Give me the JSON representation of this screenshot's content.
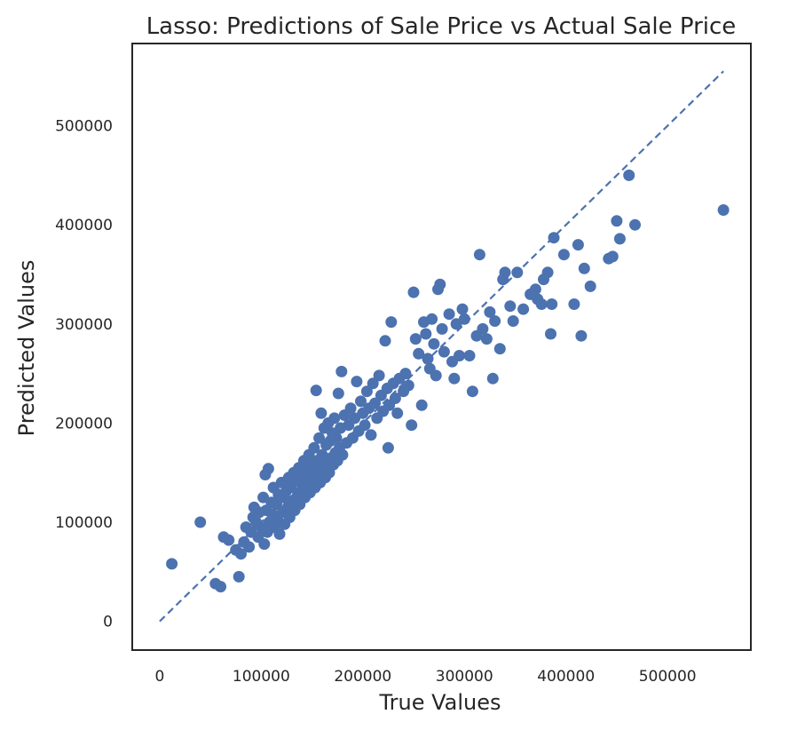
{
  "chart_data": {
    "type": "scatter",
    "title": "Lasso: Predictions of Sale Price vs Actual Sale Price",
    "xlabel": "True Values",
    "ylabel": "Predicted Values",
    "xlim": [
      -27000,
      582000
    ],
    "ylim": [
      -29000,
      583000
    ],
    "xticks": [
      0,
      100000,
      200000,
      300000,
      400000,
      500000
    ],
    "yticks": [
      0,
      100000,
      200000,
      300000,
      400000,
      500000
    ],
    "xtick_labels": [
      "0",
      "100000",
      "200000",
      "300000",
      "400000",
      "500000"
    ],
    "ytick_labels": [
      "0",
      "100000",
      "200000",
      "300000",
      "400000",
      "500000"
    ],
    "grid": false,
    "marker_color": "#4c72b0",
    "reference_line": {
      "style": "dashed",
      "from": [
        0,
        0
      ],
      "to": [
        555000,
        555000
      ]
    },
    "series": [
      {
        "points": [
          [
            12000,
            58000
          ],
          [
            40000,
            100000
          ],
          [
            55000,
            38000
          ],
          [
            60000,
            35000
          ],
          [
            63000,
            85000
          ],
          [
            68000,
            82000
          ],
          [
            75000,
            72000
          ],
          [
            78000,
            45000
          ],
          [
            80000,
            68000
          ],
          [
            83000,
            80000
          ],
          [
            85000,
            95000
          ],
          [
            88000,
            75000
          ],
          [
            90000,
            90000
          ],
          [
            92000,
            105000
          ],
          [
            93000,
            115000
          ],
          [
            95000,
            100000
          ],
          [
            97000,
            85000
          ],
          [
            98000,
            110000
          ],
          [
            100000,
            95000
          ],
          [
            102000,
            125000
          ],
          [
            103000,
            78000
          ],
          [
            104000,
            148000
          ],
          [
            105000,
            112000
          ],
          [
            106000,
            90000
          ],
          [
            107000,
            154000
          ],
          [
            108000,
            100000
          ],
          [
            110000,
            120000
          ],
          [
            111000,
            108000
          ],
          [
            112000,
            135000
          ],
          [
            113000,
            95000
          ],
          [
            115000,
            118000
          ],
          [
            116000,
            102000
          ],
          [
            117000,
            128000
          ],
          [
            118000,
            88000
          ],
          [
            120000,
            140000
          ],
          [
            121000,
            110000
          ],
          [
            122000,
            125000
          ],
          [
            123000,
            98000
          ],
          [
            125000,
            132000
          ],
          [
            126000,
            115000
          ],
          [
            127000,
            145000
          ],
          [
            128000,
            105000
          ],
          [
            130000,
            138000
          ],
          [
            131000,
            122000
          ],
          [
            132000,
            150000
          ],
          [
            133000,
            112000
          ],
          [
            135000,
            142000
          ],
          [
            136000,
            128000
          ],
          [
            137000,
            155000
          ],
          [
            138000,
            118000
          ],
          [
            140000,
            148000
          ],
          [
            141000,
            135000
          ],
          [
            142000,
            162000
          ],
          [
            143000,
            125000
          ],
          [
            145000,
            152000
          ],
          [
            146000,
            140000
          ],
          [
            147000,
            168000
          ],
          [
            148000,
            130000
          ],
          [
            150000,
            158000
          ],
          [
            151000,
            145000
          ],
          [
            152000,
            175000
          ],
          [
            153000,
            135000
          ],
          [
            154000,
            233000
          ],
          [
            155000,
            162000
          ],
          [
            156000,
            150000
          ],
          [
            157000,
            185000
          ],
          [
            158000,
            140000
          ],
          [
            159000,
            210000
          ],
          [
            160000,
            168000
          ],
          [
            161000,
            155000
          ],
          [
            162000,
            195000
          ],
          [
            163000,
            145000
          ],
          [
            164000,
            178000
          ],
          [
            165000,
            160000
          ],
          [
            166000,
            200000
          ],
          [
            167000,
            150000
          ],
          [
            168000,
            182000
          ],
          [
            169000,
            165000
          ],
          [
            170000,
            190000
          ],
          [
            171000,
            158000
          ],
          [
            172000,
            205000
          ],
          [
            173000,
            170000
          ],
          [
            174000,
            185000
          ],
          [
            175000,
            162000
          ],
          [
            176000,
            230000
          ],
          [
            177000,
            175000
          ],
          [
            178000,
            195000
          ],
          [
            179000,
            252000
          ],
          [
            180000,
            168000
          ],
          [
            182000,
            208000
          ],
          [
            184000,
            180000
          ],
          [
            186000,
            198000
          ],
          [
            188000,
            215000
          ],
          [
            190000,
            185000
          ],
          [
            192000,
            205000
          ],
          [
            194000,
            242000
          ],
          [
            196000,
            192000
          ],
          [
            198000,
            222000
          ],
          [
            200000,
            210000
          ],
          [
            202000,
            198000
          ],
          [
            204000,
            232000
          ],
          [
            206000,
            215000
          ],
          [
            208000,
            188000
          ],
          [
            210000,
            240000
          ],
          [
            212000,
            220000
          ],
          [
            214000,
            205000
          ],
          [
            216000,
            248000
          ],
          [
            218000,
            228000
          ],
          [
            220000,
            212000
          ],
          [
            222000,
            283000
          ],
          [
            224000,
            235000
          ],
          [
            225000,
            175000
          ],
          [
            226000,
            218000
          ],
          [
            228000,
            302000
          ],
          [
            230000,
            240000
          ],
          [
            232000,
            225000
          ],
          [
            234000,
            210000
          ],
          [
            236000,
            245000
          ],
          [
            240000,
            232000
          ],
          [
            242000,
            250000
          ],
          [
            245000,
            238000
          ],
          [
            248000,
            198000
          ],
          [
            250000,
            332000
          ],
          [
            252000,
            285000
          ],
          [
            255000,
            270000
          ],
          [
            258000,
            218000
          ],
          [
            260000,
            302000
          ],
          [
            262000,
            290000
          ],
          [
            264000,
            265000
          ],
          [
            266000,
            255000
          ],
          [
            268000,
            305000
          ],
          [
            270000,
            280000
          ],
          [
            272000,
            248000
          ],
          [
            274000,
            335000
          ],
          [
            276000,
            340000
          ],
          [
            278000,
            295000
          ],
          [
            280000,
            272000
          ],
          [
            285000,
            310000
          ],
          [
            288000,
            262000
          ],
          [
            290000,
            245000
          ],
          [
            292000,
            300000
          ],
          [
            295000,
            268000
          ],
          [
            298000,
            315000
          ],
          [
            300000,
            305000
          ],
          [
            305000,
            268000
          ],
          [
            308000,
            232000
          ],
          [
            312000,
            288000
          ],
          [
            315000,
            370000
          ],
          [
            318000,
            295000
          ],
          [
            322000,
            285000
          ],
          [
            325000,
            312000
          ],
          [
            328000,
            245000
          ],
          [
            330000,
            303000
          ],
          [
            335000,
            275000
          ],
          [
            338000,
            345000
          ],
          [
            340000,
            352000
          ],
          [
            345000,
            318000
          ],
          [
            348000,
            303000
          ],
          [
            352000,
            352000
          ],
          [
            358000,
            315000
          ],
          [
            365000,
            330000
          ],
          [
            370000,
            335000
          ],
          [
            372000,
            325000
          ],
          [
            376000,
            320000
          ],
          [
            378000,
            345000
          ],
          [
            382000,
            352000
          ],
          [
            385000,
            290000
          ],
          [
            386000,
            320000
          ],
          [
            388000,
            387000
          ],
          [
            398000,
            370000
          ],
          [
            408000,
            320000
          ],
          [
            412000,
            380000
          ],
          [
            415000,
            288000
          ],
          [
            418000,
            356000
          ],
          [
            424000,
            338000
          ],
          [
            442000,
            366000
          ],
          [
            446000,
            368000
          ],
          [
            450000,
            404000
          ],
          [
            453000,
            386000
          ],
          [
            462000,
            450000
          ],
          [
            468000,
            400000
          ],
          [
            555000,
            415000
          ]
        ]
      }
    ]
  }
}
